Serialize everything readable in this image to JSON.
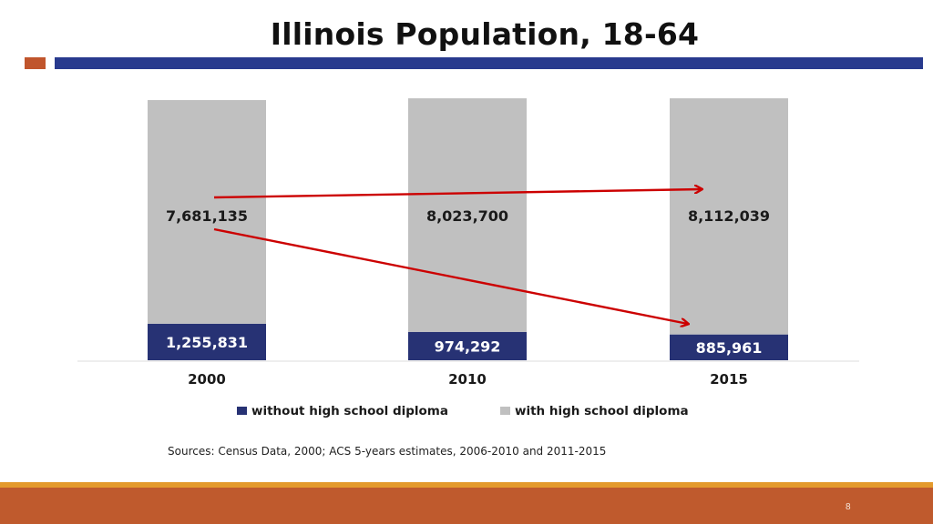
{
  "title": "Illinois Population, 18-64",
  "source_note": "Sources:  Census Data, 2000; ACS 5-years estimates, 2006-2010  and 2011-2015",
  "page_number": "8",
  "colors": {
    "accent_orange": "#C0552C",
    "accent_navy": "#283A8E",
    "bar_without": "#273274",
    "bar_with": "#C0C0C0",
    "arrow_red": "#CC0000",
    "footer": "#BF5A2D",
    "footer_line": "#E49A2C"
  },
  "chart_data": {
    "type": "bar",
    "stacked": true,
    "categories": [
      "2000",
      "2010",
      "2015"
    ],
    "series": [
      {
        "name": "without high school diploma",
        "values": [
          1255831,
          974292,
          885961
        ],
        "labels": [
          "1,255,831",
          "974,292",
          "885,961"
        ]
      },
      {
        "name": "with high school diploma",
        "values": [
          7681135,
          8023700,
          8112039
        ],
        "labels": [
          "7,681,135",
          "8,023,700",
          "8,112,039"
        ]
      }
    ],
    "ylim": [
      0,
      9000000
    ],
    "grid": false,
    "legend": "bottom",
    "annotations": [
      "arrow from 2000 with-diploma value toward 2015 with-diploma value",
      "arrow from 2000 without-diploma value toward 2015 without-diploma value"
    ]
  }
}
